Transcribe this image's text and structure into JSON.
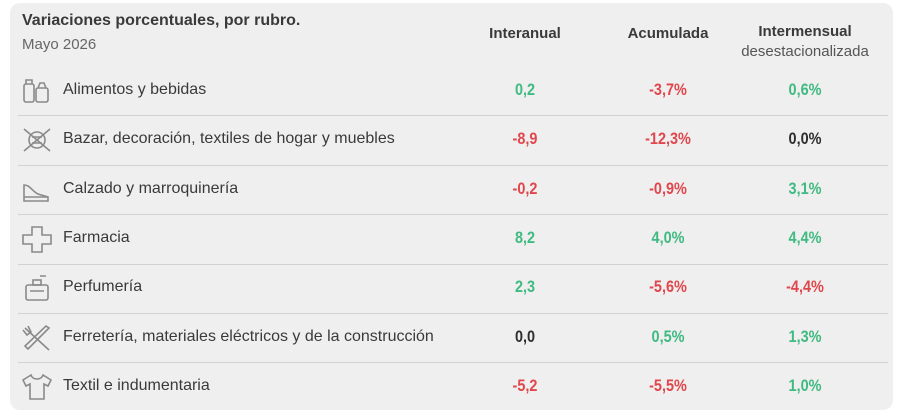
{
  "header": {
    "title": "Variaciones porcentuales, por rubro.",
    "subtitle": "Mayo 2026"
  },
  "columns": [
    {
      "label": "Interanual"
    },
    {
      "label": "Acumulada"
    },
    {
      "label": "Intermensual",
      "sublabel": "desestacionalizada"
    }
  ],
  "rows": [
    {
      "label": "Alimentos y bebidas",
      "values": [
        "0,2",
        "-3,7%",
        "0,6%"
      ]
    },
    {
      "label": "Bazar, decoración, textiles de hogar y muebles",
      "values": [
        "-8,9",
        "-12,3%",
        "0,0%"
      ]
    },
    {
      "label": "Calzado y marroquinería",
      "values": [
        "-0,2",
        "-0,9%",
        "3,1%"
      ]
    },
    {
      "label": "Farmacia",
      "values": [
        "8,2",
        "4,0%",
        "4,4%"
      ]
    },
    {
      "label": "Perfumería",
      "values": [
        "2,3",
        "-5,6%",
        "-4,4%"
      ]
    },
    {
      "label": "Ferretería, materiales eléctricos y de la construcción",
      "values": [
        "0,0",
        "0,5%",
        "1,3%"
      ]
    },
    {
      "label": "Textil e indumentaria",
      "values": [
        "-5,2",
        "-5,5%",
        "1,0%"
      ]
    }
  ]
}
